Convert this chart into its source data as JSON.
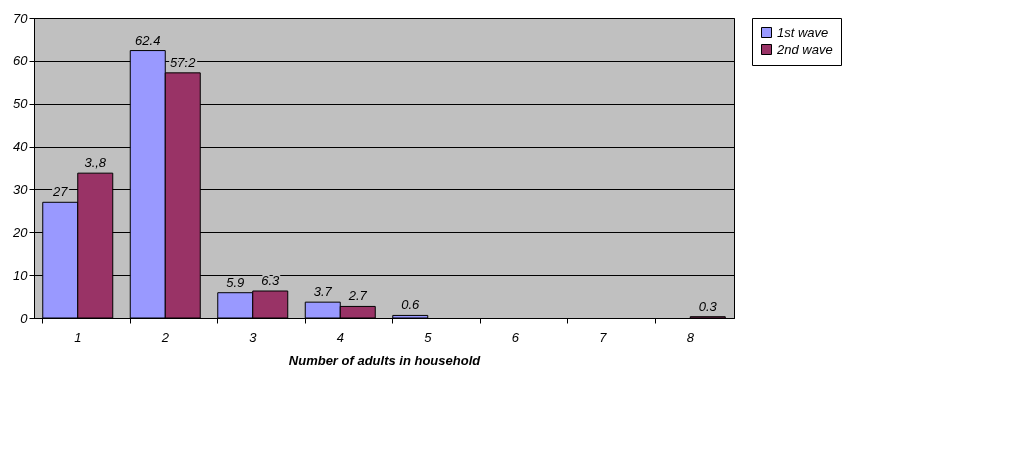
{
  "chart_data": {
    "type": "bar",
    "xlabel": "Number of adults in household",
    "categories": [
      "1",
      "2",
      "3",
      "4",
      "5",
      "6",
      "7",
      "8"
    ],
    "series": [
      {
        "name": "1st wave",
        "color": "#9999ff",
        "values": [
          27,
          62.4,
          5.9,
          3.7,
          0.6,
          null,
          null,
          null
        ],
        "value_labels": [
          "27",
          "62.4",
          "5.9",
          "3.7",
          "0.6",
          null,
          null,
          null
        ]
      },
      {
        "name": "2nd wave",
        "color": "#993366",
        "values": [
          33.8,
          57.2,
          6.3,
          2.7,
          null,
          null,
          null,
          0.3
        ],
        "value_labels": [
          "3.,8",
          "57.2",
          "6.3",
          "2.7",
          null,
          null,
          null,
          "0.3"
        ]
      }
    ],
    "ylim": [
      0,
      70
    ],
    "yticks": [
      0,
      10,
      20,
      30,
      40,
      50,
      60,
      70
    ],
    "grid": "y",
    "legend": "right"
  }
}
